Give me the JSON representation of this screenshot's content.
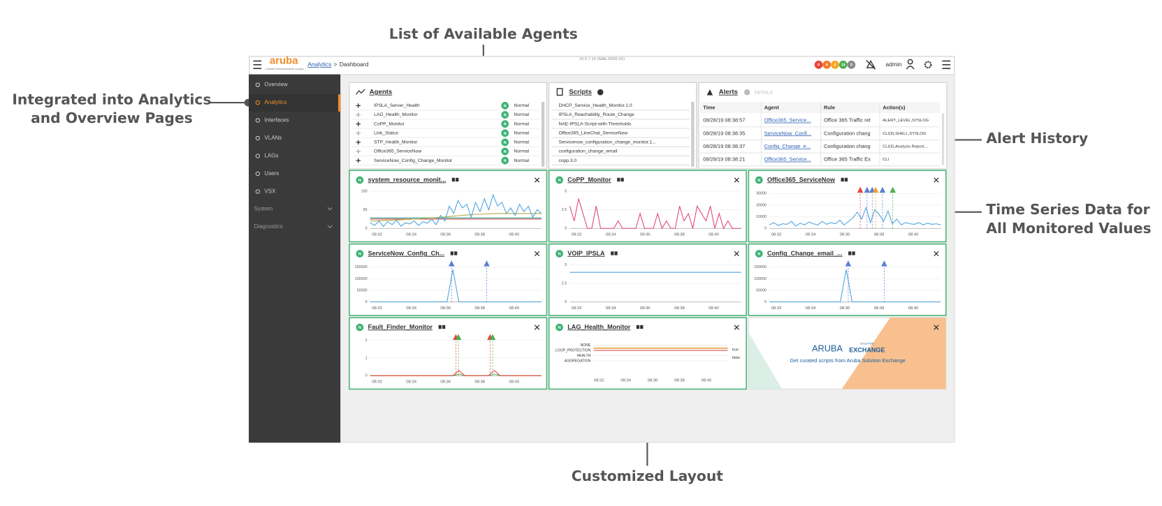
{
  "annotations": {
    "agents_list": "List of Available Agents",
    "integrated": [
      "Integrated into Analytics",
      "and Overview Pages"
    ],
    "alert_history": "Alert History",
    "time_series": [
      "Time Series Data for",
      "All Monitored Values"
    ],
    "layout": "Customized Layout"
  },
  "header": {
    "logo": "aruba",
    "logo_tagline": "a Hewlett Packard Enterprise company",
    "breadcrumb": [
      "Analytics",
      "Dashboard"
    ],
    "breadcrumb_separator": ">",
    "version": "10.5.7.16 (NAE-8320-01)",
    "badges": [
      {
        "label": "0",
        "color": "#e8453c"
      },
      {
        "label": "0",
        "color": "#f0792b"
      },
      {
        "label": "0",
        "color": "#f5a623"
      },
      {
        "label": "14",
        "color": "#4caf50"
      },
      {
        "label": "0",
        "color": "#8a8a8a"
      }
    ],
    "user": "admin"
  },
  "sidebar": {
    "items": [
      "Overview",
      "Analytics",
      "Interfaces",
      "VLANs",
      "LAGs",
      "Users",
      "VSX"
    ],
    "active_index": 1,
    "groups": [
      "System",
      "Diagnostics"
    ]
  },
  "agents": {
    "title": "Agents",
    "rows": [
      {
        "name": "IPSLA_Server_Health",
        "badge": "N",
        "status": "Normal"
      },
      {
        "name": "LAG_Health_Monitor",
        "badge": "N",
        "status": "Normal"
      },
      {
        "name": "CoPP_Monitor",
        "badge": "N",
        "status": "Normal"
      },
      {
        "name": "Link_Status",
        "badge": "N",
        "status": "Normal"
      },
      {
        "name": "STP_Health_Monitor",
        "badge": "N",
        "status": "Normal"
      },
      {
        "name": "Office365_ServiceNow",
        "badge": "N",
        "status": "Normal"
      },
      {
        "name": "ServiceNow_Config_Change_Monitor",
        "badge": "N",
        "status": "Normal"
      }
    ]
  },
  "scripts": {
    "title": "Scripts",
    "rows": [
      "DHCP_Service_Health_Monitor.1.0",
      "IPSLA_Reachability_Route_Change",
      "NAE-IPSLA-Script-with-Thresholds",
      "Office365_LineChat_ServiceNow",
      "Servicenow_configuration_change_monitor.1...",
      "configuration_change_email",
      "copp.3.0"
    ]
  },
  "alerts": {
    "title": "Alerts",
    "details": "DETAILS",
    "columns": [
      "Time",
      "Agent",
      "Rule",
      "Action(s)"
    ],
    "rows": [
      [
        "08/28/19 08:38:57",
        "Office365_Service...",
        "Office 365 Traffic ret",
        "ALERT_LEVEL,SYSLOG"
      ],
      [
        "08/28/19 08:38:35",
        "ServiceNow_Confi...",
        "Configuration chang",
        "CLI(3),SHELL,SYSLOG"
      ],
      [
        "08/28/19 08:38:37",
        "Config_Change_e...",
        "Configuration chang",
        "CLI(3),Analysis Report,..."
      ],
      [
        "08/28/19 08:38:21",
        "Office365_Service...",
        "Office 365 Traffic Ex",
        "CLI"
      ]
    ]
  },
  "widgets": [
    {
      "title": "system_resource_monit...",
      "status": "N",
      "type": "line",
      "ylim": [
        0,
        100
      ],
      "yticks": [
        0,
        50,
        100
      ],
      "xlim": [
        31.6,
        41.6
      ],
      "xticks": [
        {
          "value": 32,
          "label": "08:32"
        },
        {
          "value": 34,
          "label": "08:34"
        },
        {
          "value": 36,
          "label": "08:36"
        },
        {
          "value": 38,
          "label": "08:38"
        },
        {
          "value": 40,
          "label": "08:40"
        }
      ],
      "series": [
        {
          "color": "#d9534f",
          "values": [
            25,
            25
          ]
        },
        {
          "color": "#2a9d8f",
          "values": [
            28,
            28
          ]
        },
        {
          "color": "#b5a642",
          "values": [
            20,
            20,
            21,
            21,
            22,
            22,
            23,
            23,
            24,
            24,
            25,
            25,
            26,
            27,
            28,
            29,
            30,
            31,
            32,
            33,
            34,
            35,
            36,
            37,
            38,
            38,
            39,
            39,
            40,
            40,
            40,
            40,
            40,
            40,
            40,
            40,
            40,
            40,
            40,
            40
          ]
        },
        {
          "color": "#4aa3df",
          "values": [
            15,
            8,
            20,
            5,
            18,
            10,
            22,
            6,
            15,
            12,
            20,
            8,
            18,
            14,
            25,
            10,
            35,
            20,
            60,
            40,
            75,
            55,
            65,
            30,
            70,
            45,
            80,
            50,
            90,
            60,
            70,
            40,
            55,
            35,
            65,
            45,
            60,
            30,
            50,
            40
          ]
        }
      ],
      "markers": []
    },
    {
      "title": "CoPP_Monitor",
      "status": "N",
      "type": "line",
      "ylim": [
        0,
        5
      ],
      "yticks": [
        0,
        2.5,
        5
      ],
      "xlim": [
        31.6,
        41.6
      ],
      "xticks": [
        {
          "value": 32,
          "label": "08:32"
        },
        {
          "value": 34,
          "label": "08:34"
        },
        {
          "value": 36,
          "label": "08:36"
        },
        {
          "value": 38,
          "label": "08:38"
        },
        {
          "value": 40,
          "label": "08:40"
        }
      ],
      "series": [
        {
          "color": "#e0457b",
          "values": [
            3,
            1,
            4,
            2,
            0,
            0,
            3,
            0,
            0,
            0,
            0,
            1,
            0,
            0,
            0,
            0,
            2,
            0,
            0,
            0,
            2,
            0,
            1,
            0,
            0,
            3,
            1,
            2,
            0,
            3,
            2,
            1,
            3,
            0,
            2,
            0,
            1,
            0,
            0,
            0
          ]
        }
      ],
      "markers": []
    },
    {
      "title": "Office365_ServiceNow",
      "status": "N",
      "type": "line",
      "ylim": [
        0,
        32000
      ],
      "yticks": [
        0,
        10000,
        20000,
        30000
      ],
      "xlim": [
        31.6,
        41.6
      ],
      "xticks": [
        {
          "value": 32,
          "label": "08:32"
        },
        {
          "value": 34,
          "label": "08:34"
        },
        {
          "value": 36,
          "label": "08:36"
        },
        {
          "value": 38,
          "label": "08:38"
        },
        {
          "value": 40,
          "label": "08:40"
        }
      ],
      "series": [
        {
          "color": "#4aa3df",
          "values": [
            3000,
            5000,
            2500,
            4000,
            3500,
            6000,
            2000,
            4500,
            3000,
            5500,
            4000,
            3000,
            6000,
            3500,
            5000,
            4000,
            7000,
            3000,
            6000,
            9000,
            14000,
            8000,
            18000,
            5000,
            16000,
            12000,
            6000,
            15000,
            4000,
            8000,
            3000,
            5000,
            4000,
            3500,
            5000,
            3000,
            4500,
            3500,
            4000,
            3000
          ]
        }
      ],
      "markers": [
        {
          "x": 36.9,
          "color": "#e8453c"
        },
        {
          "x": 37.3,
          "color": "#5b7fd6"
        },
        {
          "x": 37.6,
          "color": "#5b7fd6"
        },
        {
          "x": 37.8,
          "color": "#f0a030"
        },
        {
          "x": 38.2,
          "color": "#5b7fd6"
        },
        {
          "x": 38.8,
          "color": "#4caf50"
        }
      ]
    },
    {
      "title": "ServiceNow_Config_Ch...",
      "status": "N",
      "type": "line",
      "ylim": [
        0,
        160000
      ],
      "yticks": [
        0,
        50000,
        100000,
        150000
      ],
      "xlim": [
        31.6,
        41.6
      ],
      "xticks": [
        {
          "value": 32,
          "label": "08:32"
        },
        {
          "value": 34,
          "label": "08:34"
        },
        {
          "value": 36,
          "label": "08:36"
        },
        {
          "value": 38,
          "label": "08:38"
        },
        {
          "value": 40,
          "label": "08:40"
        }
      ],
      "series": [
        {
          "color": "#4aa3df",
          "values": [
            1000,
            1000,
            1000,
            1000,
            1000,
            1000,
            1000,
            1000,
            1000,
            1000,
            1000,
            1000,
            1000,
            1000,
            140000,
            1000,
            1000,
            1000,
            1000,
            1000,
            1000,
            1000,
            1000,
            1000,
            1000,
            1000,
            1000,
            1000,
            1000,
            1000
          ]
        }
      ],
      "markers": [
        {
          "x": 36.35,
          "color": "#5b7fd6"
        },
        {
          "x": 38.4,
          "color": "#5b7fd6"
        }
      ]
    },
    {
      "title": "VOIP_IPSLA",
      "status": "N",
      "type": "line",
      "ylim": [
        0,
        5
      ],
      "yticks": [
        0,
        2.5,
        5
      ],
      "xlim": [
        31.6,
        41.6
      ],
      "xticks": [
        {
          "value": 32,
          "label": "08:32"
        },
        {
          "value": 34,
          "label": "08:34"
        },
        {
          "value": 36,
          "label": "08:36"
        },
        {
          "value": 38,
          "label": "08:38"
        },
        {
          "value": 40,
          "label": "08:40"
        }
      ],
      "series": [
        {
          "color": "#4aa3df",
          "values": [
            4,
            4
          ]
        }
      ],
      "markers": []
    },
    {
      "title": "Config_Change_email_...",
      "status": "N",
      "type": "line",
      "ylim": [
        0,
        160000
      ],
      "yticks": [
        0,
        50000,
        100000,
        150000
      ],
      "xlim": [
        31.6,
        41.6
      ],
      "xticks": [
        {
          "value": 32,
          "label": "08:32"
        },
        {
          "value": 34,
          "label": "08:34"
        },
        {
          "value": 36,
          "label": "08:36"
        },
        {
          "value": 38,
          "label": "08:38"
        },
        {
          "value": 40,
          "label": "08:40"
        }
      ],
      "series": [
        {
          "color": "#4aa3df",
          "values": [
            1000,
            1000,
            1000,
            1000,
            1000,
            1000,
            1000,
            1000,
            1000,
            1000,
            1000,
            1000,
            1000,
            140000,
            1000,
            1000,
            1000,
            1000,
            1000,
            1000,
            1000,
            1000,
            1000,
            1000,
            1000,
            1000,
            1000,
            1000,
            1000,
            1000
          ]
        }
      ],
      "markers": [
        {
          "x": 36.2,
          "color": "#5b7fd6"
        },
        {
          "x": 38.3,
          "color": "#5b7fd6"
        }
      ]
    },
    {
      "title": "Fault_Finder_Monitor",
      "status": "N",
      "type": "line",
      "ylim": [
        0,
        2.1
      ],
      "yticks": [
        0,
        1,
        2
      ],
      "xlim": [
        31.6,
        41.6
      ],
      "xticks": [
        {
          "value": 32,
          "label": "08:32"
        },
        {
          "value": 34,
          "label": "08:34"
        },
        {
          "value": 36,
          "label": "08:36"
        },
        {
          "value": 38,
          "label": "08:38"
        },
        {
          "value": 40,
          "label": "08:40"
        }
      ],
      "series": [
        {
          "color": "#4caf50",
          "values": [
            0,
            0,
            0,
            0,
            0,
            0,
            0,
            0,
            0,
            0,
            0,
            0,
            0,
            0,
            0,
            0.1,
            0,
            0,
            0,
            0,
            0,
            0.1,
            0,
            0,
            0,
            0,
            0,
            0,
            0,
            0
          ]
        },
        {
          "color": "#e8453c",
          "values": [
            0,
            0,
            0,
            0,
            0,
            0,
            0,
            0,
            0,
            0,
            0,
            0,
            0,
            0,
            0,
            0.3,
            0,
            0,
            0,
            0,
            0,
            0.3,
            0,
            0,
            0,
            0,
            0,
            0,
            0,
            0
          ]
        }
      ],
      "markers": [
        {
          "x": 36.6,
          "color": "#e8453c"
        },
        {
          "x": 36.75,
          "color": "#4caf50"
        },
        {
          "x": 38.6,
          "color": "#e8453c"
        },
        {
          "x": 38.75,
          "color": "#4caf50"
        }
      ]
    },
    {
      "title": "LAG_Health_Monitor",
      "status": "N",
      "type": "state",
      "states": [
        "NONE",
        "LOOP_PROTECTION",
        "HEALTH",
        "AGGREGATION"
      ],
      "state_values": [
        "true",
        "false"
      ],
      "xlim": [
        31.6,
        41.6
      ],
      "xticks": [
        {
          "value": 32,
          "label": "08:32"
        },
        {
          "value": 34,
          "label": "08:34"
        },
        {
          "value": 36,
          "label": "08:36"
        },
        {
          "value": 38,
          "label": "08:38"
        },
        {
          "value": 40,
          "label": "08:40"
        }
      ]
    },
    {
      "type": "exchange",
      "brand": "ARUBA",
      "brand_super": "SOLUTION",
      "brand_name": "EXCHANGE",
      "subtitle": "Get curated scripts from Aruba Solution Exchange"
    }
  ]
}
